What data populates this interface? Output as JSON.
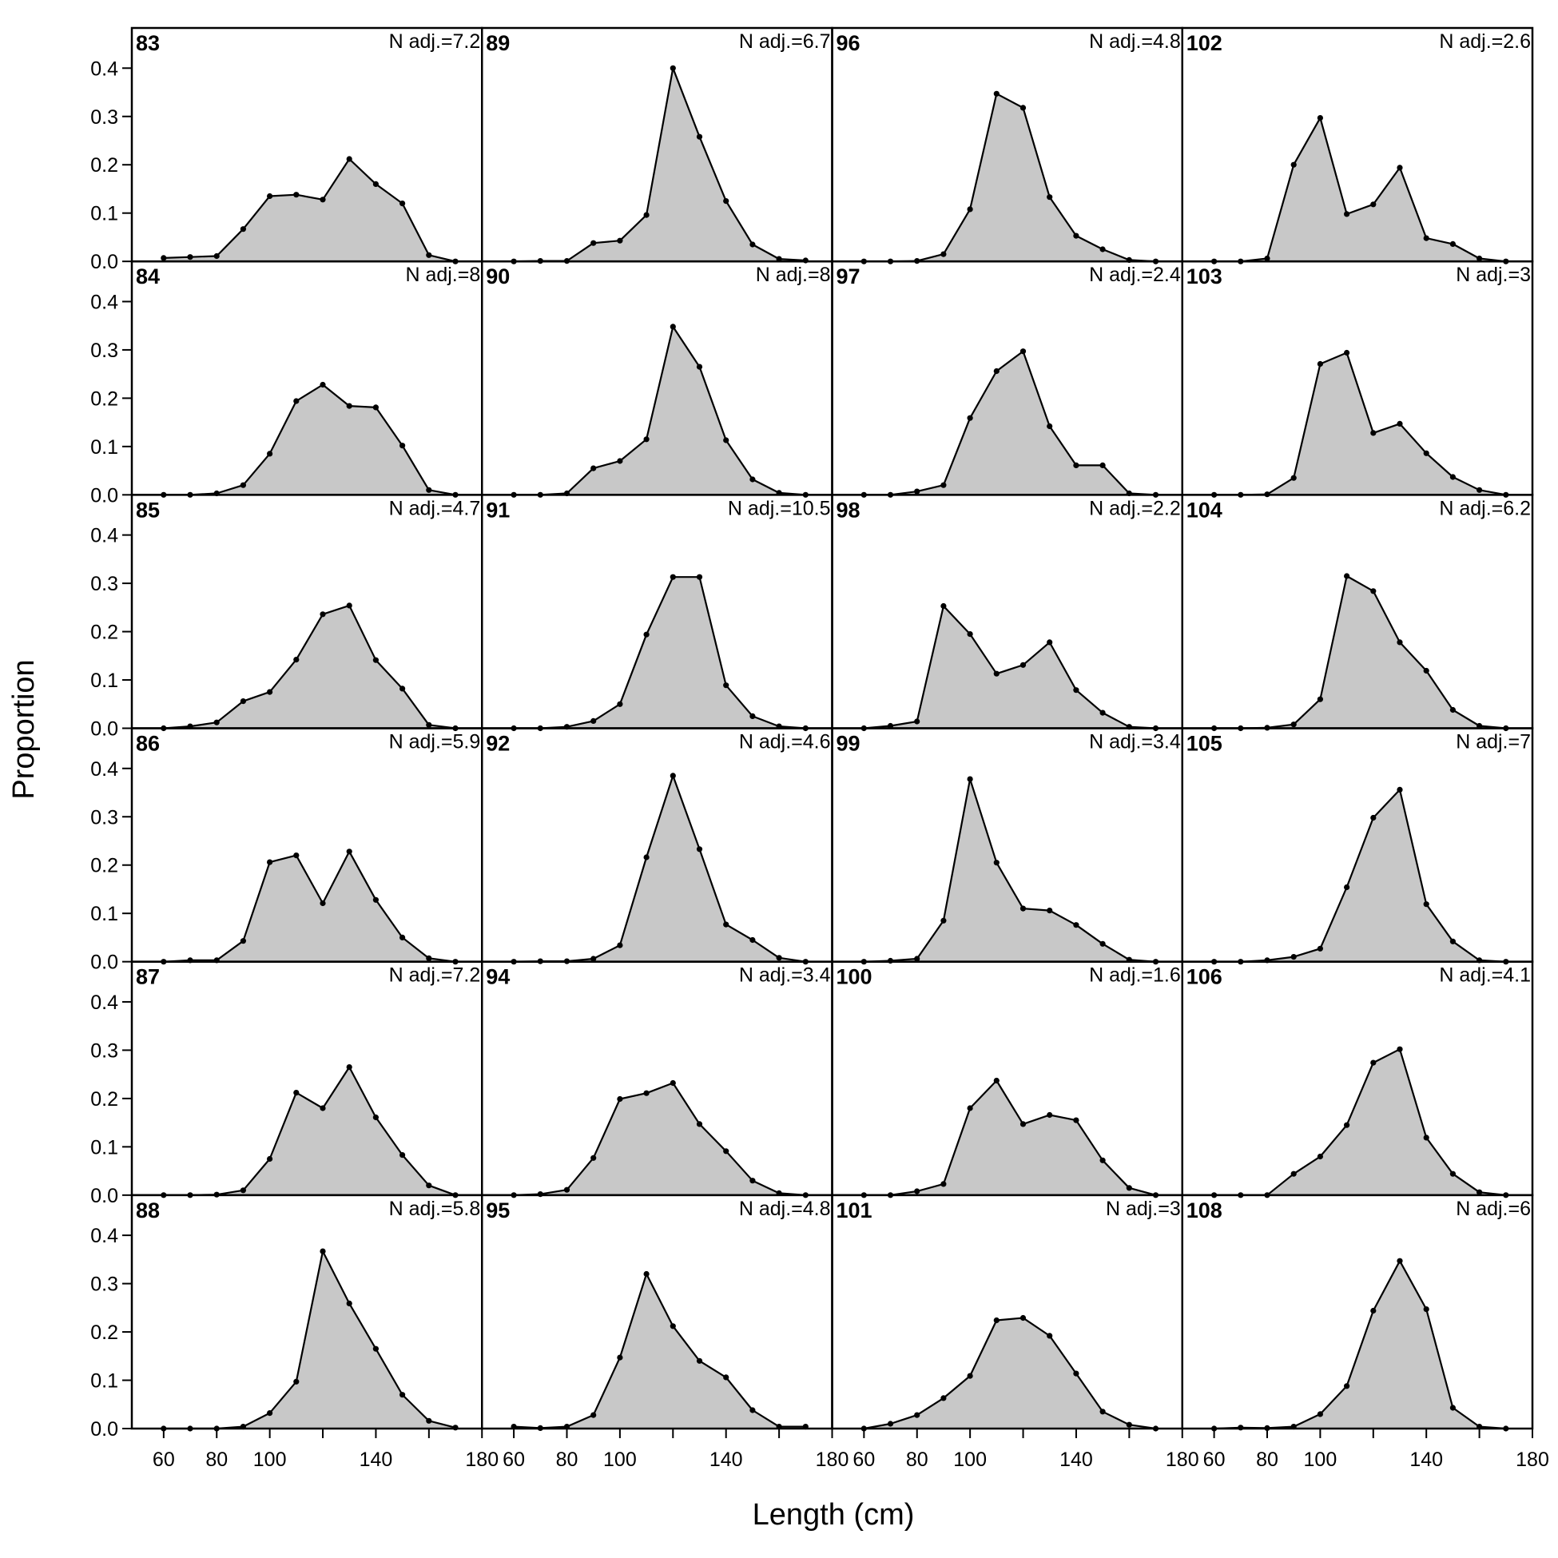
{
  "chart_data": {
    "type": "area",
    "xlabel": "Length (cm)",
    "ylabel": "Proportion",
    "xlim": [
      48,
      180
    ],
    "ylim": [
      0,
      0.46
    ],
    "x_ticks": [
      60,
      80,
      100,
      140,
      180
    ],
    "x_tick_labels": [
      "60",
      "80",
      "100",
      "140",
      "180"
    ],
    "y_ticks": [
      0.0,
      0.1,
      0.2,
      0.3,
      0.4
    ],
    "y_tick_labels": [
      "0.0",
      "0.1",
      "0.2",
      "0.3",
      "0.4"
    ],
    "x": [
      60,
      70,
      80,
      90,
      100,
      110,
      120,
      130,
      140,
      150,
      160,
      170
    ],
    "panels": [
      {
        "label": "83",
        "nadj": "N adj.=7.2",
        "values": [
          0.007,
          0.009,
          0.011,
          0.067,
          0.135,
          0.138,
          0.128,
          0.212,
          0.16,
          0.12,
          0.013,
          0.0
        ]
      },
      {
        "label": "89",
        "nadj": "N adj.=6.7",
        "values": [
          0.0,
          0.001,
          0.001,
          0.038,
          0.043,
          0.096,
          0.4,
          0.258,
          0.125,
          0.035,
          0.005,
          0.002
        ]
      },
      {
        "label": "96",
        "nadj": "N adj.=4.8",
        "values": [
          0.0,
          0.0,
          0.001,
          0.015,
          0.108,
          0.347,
          0.318,
          0.133,
          0.053,
          0.025,
          0.003,
          0.0
        ]
      },
      {
        "label": "102",
        "nadj": "N adj.=2.6",
        "values": [
          0.0,
          0.0,
          0.006,
          0.2,
          0.297,
          0.098,
          0.118,
          0.194,
          0.048,
          0.036,
          0.006,
          0.0
        ]
      },
      {
        "label": "84",
        "nadj": "N adj.=8",
        "values": [
          0.0,
          0.0,
          0.003,
          0.02,
          0.085,
          0.194,
          0.228,
          0.184,
          0.181,
          0.102,
          0.01,
          0.0
        ]
      },
      {
        "label": "90",
        "nadj": "N adj.=8",
        "values": [
          0.0,
          0.0,
          0.003,
          0.055,
          0.07,
          0.115,
          0.348,
          0.265,
          0.113,
          0.032,
          0.004,
          0.0
        ]
      },
      {
        "label": "97",
        "nadj": "N adj.=2.4",
        "values": [
          0.0,
          0.0,
          0.007,
          0.02,
          0.159,
          0.256,
          0.297,
          0.142,
          0.061,
          0.061,
          0.003,
          0.0
        ]
      },
      {
        "label": "103",
        "nadj": "N adj.=3",
        "values": [
          0.0,
          0.0,
          0.001,
          0.035,
          0.271,
          0.294,
          0.128,
          0.147,
          0.086,
          0.037,
          0.01,
          0.0
        ]
      },
      {
        "label": "85",
        "nadj": "N adj.=4.7",
        "values": [
          0.0,
          0.004,
          0.012,
          0.056,
          0.075,
          0.142,
          0.236,
          0.254,
          0.141,
          0.082,
          0.007,
          0.0
        ]
      },
      {
        "label": "91",
        "nadj": "N adj.=10.5",
        "values": [
          0.0,
          0.0,
          0.003,
          0.015,
          0.05,
          0.194,
          0.313,
          0.313,
          0.089,
          0.025,
          0.004,
          0.0
        ]
      },
      {
        "label": "98",
        "nadj": "N adj.=2.2",
        "values": [
          0.0,
          0.005,
          0.014,
          0.253,
          0.195,
          0.113,
          0.131,
          0.178,
          0.079,
          0.032,
          0.003,
          0.0
        ]
      },
      {
        "label": "104",
        "nadj": "N adj.=6.2",
        "values": [
          0.0,
          0.0,
          0.001,
          0.008,
          0.06,
          0.315,
          0.284,
          0.178,
          0.119,
          0.038,
          0.005,
          0.0
        ]
      },
      {
        "label": "86",
        "nadj": "N adj.=5.9",
        "values": [
          0.0,
          0.003,
          0.003,
          0.043,
          0.206,
          0.22,
          0.121,
          0.228,
          0.128,
          0.05,
          0.007,
          0.0
        ]
      },
      {
        "label": "92",
        "nadj": "N adj.=4.6",
        "values": [
          0.0,
          0.001,
          0.001,
          0.006,
          0.034,
          0.216,
          0.385,
          0.233,
          0.077,
          0.045,
          0.008,
          0.0
        ]
      },
      {
        "label": "99",
        "nadj": "N adj.=3.4",
        "values": [
          0.0,
          0.002,
          0.006,
          0.085,
          0.378,
          0.205,
          0.11,
          0.106,
          0.076,
          0.037,
          0.004,
          0.0
        ]
      },
      {
        "label": "105",
        "nadj": "N adj.=7",
        "values": [
          0.0,
          0.0,
          0.003,
          0.01,
          0.027,
          0.154,
          0.298,
          0.356,
          0.119,
          0.042,
          0.003,
          0.0
        ]
      },
      {
        "label": "87",
        "nadj": "N adj.=7.2",
        "values": [
          0.0,
          0.0,
          0.001,
          0.01,
          0.075,
          0.212,
          0.18,
          0.265,
          0.161,
          0.083,
          0.02,
          0.0
        ]
      },
      {
        "label": "94",
        "nadj": "N adj.=3.4",
        "values": [
          0.0,
          0.002,
          0.011,
          0.077,
          0.199,
          0.211,
          0.232,
          0.147,
          0.091,
          0.03,
          0.004,
          0.0
        ]
      },
      {
        "label": "100",
        "nadj": "N adj.=1.6",
        "values": [
          0.0,
          0.0,
          0.008,
          0.023,
          0.18,
          0.237,
          0.147,
          0.166,
          0.155,
          0.072,
          0.015,
          0.0
        ]
      },
      {
        "label": "106",
        "nadj": "N adj.=4.1",
        "values": [
          0.0,
          0.0,
          0.0,
          0.044,
          0.08,
          0.145,
          0.274,
          0.302,
          0.119,
          0.044,
          0.006,
          0.0
        ]
      },
      {
        "label": "88",
        "nadj": "N adj.=5.8",
        "values": [
          0.0,
          0.0,
          0.0,
          0.004,
          0.032,
          0.097,
          0.367,
          0.259,
          0.165,
          0.07,
          0.016,
          0.002
        ]
      },
      {
        "label": "95",
        "nadj": "N adj.=4.8",
        "values": [
          0.004,
          0.001,
          0.004,
          0.028,
          0.147,
          0.32,
          0.212,
          0.14,
          0.106,
          0.038,
          0.004,
          0.004
        ]
      },
      {
        "label": "101",
        "nadj": "N adj.=3",
        "values": [
          0.0,
          0.01,
          0.028,
          0.063,
          0.109,
          0.224,
          0.229,
          0.192,
          0.114,
          0.035,
          0.008,
          0.0
        ]
      },
      {
        "label": "108",
        "nadj": "N adj.=6",
        "values": [
          0.0,
          0.002,
          0.001,
          0.004,
          0.03,
          0.088,
          0.244,
          0.347,
          0.247,
          0.043,
          0.004,
          0.0
        ]
      }
    ],
    "colors": {
      "fill": "#c8c8c8",
      "line": "#000000"
    }
  }
}
